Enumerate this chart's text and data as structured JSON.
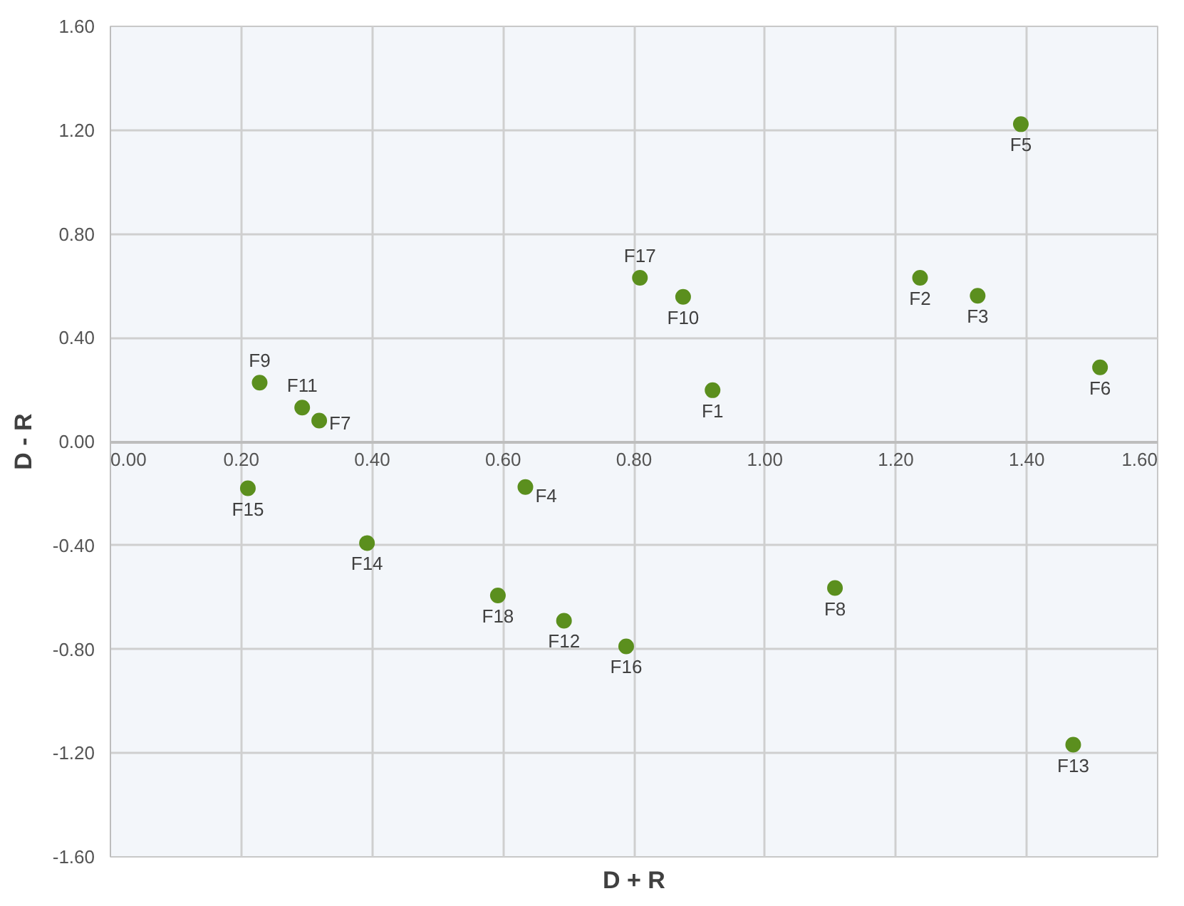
{
  "chart_data": {
    "type": "scatter",
    "xlabel": "D + R",
    "ylabel": "D - R",
    "marker": "circle",
    "grid": true,
    "xlim": [
      0,
      1.6
    ],
    "ylim": [
      -1.6,
      1.6
    ],
    "xticks": [
      {
        "value": 0,
        "label": "0.00"
      },
      {
        "value": 0.2,
        "label": "0.20"
      },
      {
        "value": 0.4,
        "label": "0.40"
      },
      {
        "value": 0.6,
        "label": "0.60"
      },
      {
        "value": 0.8,
        "label": "0.80"
      },
      {
        "value": 1.0,
        "label": "1.00"
      },
      {
        "value": 1.2,
        "label": "1.20"
      },
      {
        "value": 1.4,
        "label": "1.40"
      },
      {
        "value": 1.6,
        "label": "1.60"
      }
    ],
    "yticks": [
      {
        "value": -1.6,
        "label": "-1.60"
      },
      {
        "value": -1.2,
        "label": "-1.20"
      },
      {
        "value": -0.8,
        "label": "-0.80"
      },
      {
        "value": -0.4,
        "label": "-0.40"
      },
      {
        "value": 0,
        "label": "0.00"
      },
      {
        "value": 0.4,
        "label": "0.40"
      },
      {
        "value": 0.8,
        "label": "0.80"
      },
      {
        "value": 1.2,
        "label": "1.20"
      },
      {
        "value": 1.6,
        "label": "1.60"
      }
    ],
    "series": [
      {
        "color": "#5b8f1e",
        "x": [
          0.92,
          1.237,
          1.325,
          0.634,
          1.391,
          1.512,
          0.319,
          1.107,
          0.228,
          0.875,
          0.293,
          0.693,
          1.471,
          0.392,
          0.21,
          0.788,
          0.809,
          0.592
        ],
        "values": [
          0.198,
          0.631,
          0.562,
          -0.175,
          1.223,
          0.286,
          0.081,
          -0.564,
          0.227,
          0.558,
          0.131,
          -0.69,
          -1.168,
          -0.391,
          -0.18,
          -0.789,
          0.631,
          -0.593
        ]
      }
    ],
    "annotations": [
      {
        "text": "F1",
        "x": 0.92,
        "y": 0.198
      },
      {
        "text": "F2",
        "x": 1.237,
        "y": 0.631
      },
      {
        "text": "F3",
        "x": 1.325,
        "y": 0.562
      },
      {
        "text": "F4",
        "x": 0.634,
        "y": -0.175
      },
      {
        "text": "F5",
        "x": 1.391,
        "y": 1.223
      },
      {
        "text": "F6",
        "x": 1.512,
        "y": 0.286
      },
      {
        "text": "F7",
        "x": 0.319,
        "y": 0.081
      },
      {
        "text": "F8",
        "x": 1.107,
        "y": -0.564
      },
      {
        "text": "F9",
        "x": 0.228,
        "y": 0.227
      },
      {
        "text": "F10",
        "x": 0.875,
        "y": 0.558
      },
      {
        "text": "F11",
        "x": 0.293,
        "y": 0.131
      },
      {
        "text": "F12",
        "x": 0.693,
        "y": -0.69
      },
      {
        "text": "F13",
        "x": 1.471,
        "y": -1.168
      },
      {
        "text": "F14",
        "x": 0.392,
        "y": -0.391
      },
      {
        "text": "F15",
        "x": 0.21,
        "y": -0.18
      },
      {
        "text": "F16",
        "x": 0.788,
        "y": -0.789
      },
      {
        "text": "F17",
        "x": 0.809,
        "y": 0.631
      },
      {
        "text": "F18",
        "x": 0.592,
        "y": -0.593
      }
    ]
  }
}
